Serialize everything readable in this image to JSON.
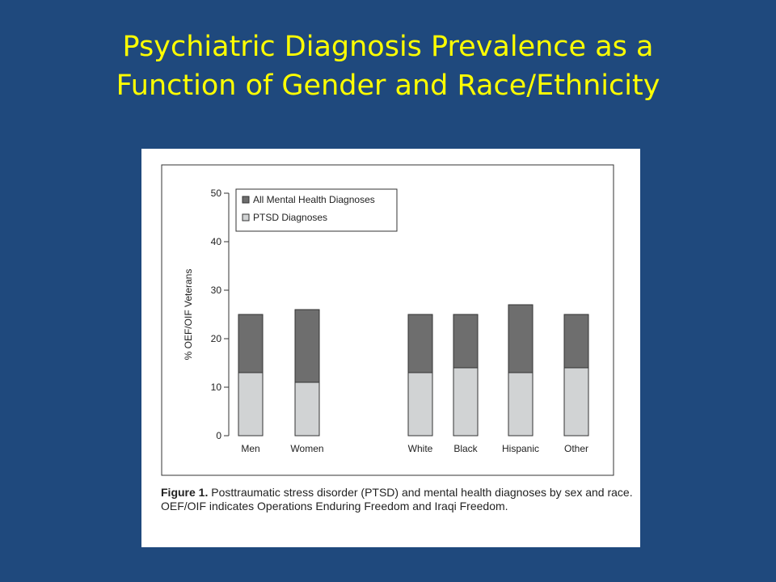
{
  "slide": {
    "title_line1": "Psychiatric Diagnosis Prevalence as a",
    "title_line2": "Function of Gender and Race/Ethnicity"
  },
  "figure": {
    "caption_label": "Figure 1.",
    "caption_text": "Posttraumatic stress disorder (PTSD) and mental health diagnoses by sex and race. OEF/OIF indicates Operations Enduring Freedom and Iraqi Freedom."
  },
  "chart_data": {
    "type": "bar",
    "stacked": false,
    "overlapped": true,
    "categories": [
      "Men",
      "Women",
      "White",
      "Black",
      "Hispanic",
      "Other"
    ],
    "series": [
      {
        "name": "All Mental Health Diagnoses",
        "values": [
          25,
          26,
          25,
          25,
          27,
          25
        ],
        "color": "#6e6e6e"
      },
      {
        "name": "PTSD Diagnoses",
        "values": [
          13,
          11,
          13,
          14,
          13,
          14
        ],
        "color": "#d1d3d4"
      }
    ],
    "xlabel": "",
    "ylabel": "% OEF/OIF Veterans",
    "ylim": [
      0,
      50
    ],
    "yticks": [
      0,
      10,
      20,
      30,
      40,
      50
    ],
    "grid": false,
    "legend_position": "top-left"
  }
}
